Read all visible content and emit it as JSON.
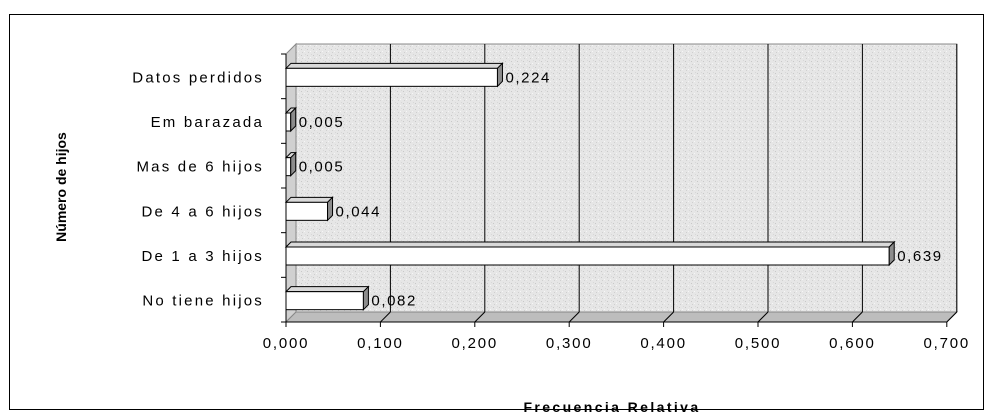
{
  "chart_data": {
    "type": "bar",
    "orientation": "horizontal",
    "categories": [
      "Datos perdidos",
      "Em barazada",
      "Mas de 6 hijos",
      "De 4 a 6 hijos",
      "De 1 a 3 hijos",
      "No tiene hijos"
    ],
    "values": [
      0.224,
      0.005,
      0.005,
      0.044,
      0.639,
      0.082
    ],
    "value_labels": [
      "0,224",
      "0,005",
      "0,005",
      "0,044",
      "0,639",
      "0,082"
    ],
    "xlabel": "Frecuencia Relativa",
    "ylabel": "Número de hijos",
    "xlim": [
      0,
      0.7
    ],
    "xticks": [
      "0,000",
      "0,100",
      "0,200",
      "0,300",
      "0,400",
      "0,500",
      "0,600",
      "0,700"
    ],
    "grid": true,
    "style": "3d",
    "colors": {
      "bar_face": "#ffffff",
      "bar_side": "#8c8c8c",
      "bar_top": "#d9d9d9",
      "plot_background": "#e8e8e8",
      "gridline": "#000000"
    }
  }
}
